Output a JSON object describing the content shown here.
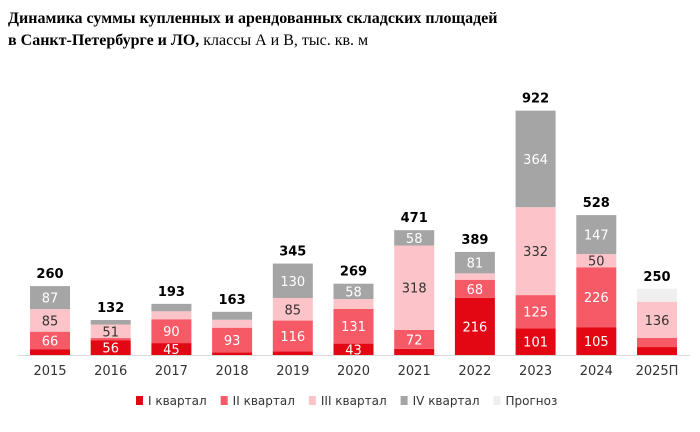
{
  "chart_data": {
    "type": "bar",
    "stacked": true,
    "title_line1": "Динамика суммы купленных и арендованных складских площадей",
    "title_line2_bold": "в Санкт-Петербурге и ЛО,",
    "title_line2_rest": " классы А и В, тыс. кв. м",
    "categories": [
      "2015",
      "2016",
      "2017",
      "2018",
      "2019",
      "2020",
      "2021",
      "2022",
      "2023",
      "2024",
      "2025П"
    ],
    "totals": [
      260,
      132,
      193,
      163,
      345,
      269,
      471,
      389,
      922,
      528,
      250
    ],
    "series": [
      {
        "name": "I квартал",
        "color": "#e30613",
        "textColor": "#ffffff",
        "values": [
          22,
          56,
          45,
          10,
          14,
          43,
          23,
          216,
          101,
          105,
          30
        ],
        "labels": [
          null,
          "56",
          "45",
          null,
          null,
          "43",
          null,
          "216",
          "101",
          "105",
          null
        ]
      },
      {
        "name": "II квартал",
        "color": "#f55a66",
        "textColor": "#ffffff",
        "values": [
          66,
          8,
          90,
          93,
          116,
          131,
          72,
          68,
          125,
          226,
          35
        ],
        "labels": [
          "66",
          null,
          "90",
          "93",
          "116",
          "131",
          "72",
          "68",
          "125",
          "226",
          null
        ]
      },
      {
        "name": "III квартал",
        "color": "#fcc4c9",
        "textColor": "#333333",
        "values": [
          85,
          51,
          30,
          30,
          85,
          37,
          318,
          24,
          332,
          50,
          136
        ],
        "labels": [
          "85",
          "51",
          null,
          null,
          "85",
          null,
          "318",
          null,
          "332",
          "50",
          "136"
        ]
      },
      {
        "name": "IV квартал",
        "color": "#a5a5a5",
        "textColor": "#ffffff",
        "values": [
          87,
          17,
          28,
          30,
          130,
          58,
          58,
          81,
          364,
          147,
          0
        ],
        "labels": [
          "87",
          null,
          null,
          null,
          "130",
          "58",
          "58",
          "81",
          "364",
          "147",
          null
        ]
      },
      {
        "name": "Прогноз",
        "color": "#efefef",
        "textColor": "#333333",
        "values": [
          0,
          0,
          0,
          0,
          0,
          0,
          0,
          0,
          0,
          0,
          49
        ],
        "labels": [
          null,
          null,
          null,
          null,
          null,
          null,
          null,
          null,
          null,
          null,
          null
        ]
      }
    ],
    "legend_position": "bottom",
    "grid": false
  }
}
